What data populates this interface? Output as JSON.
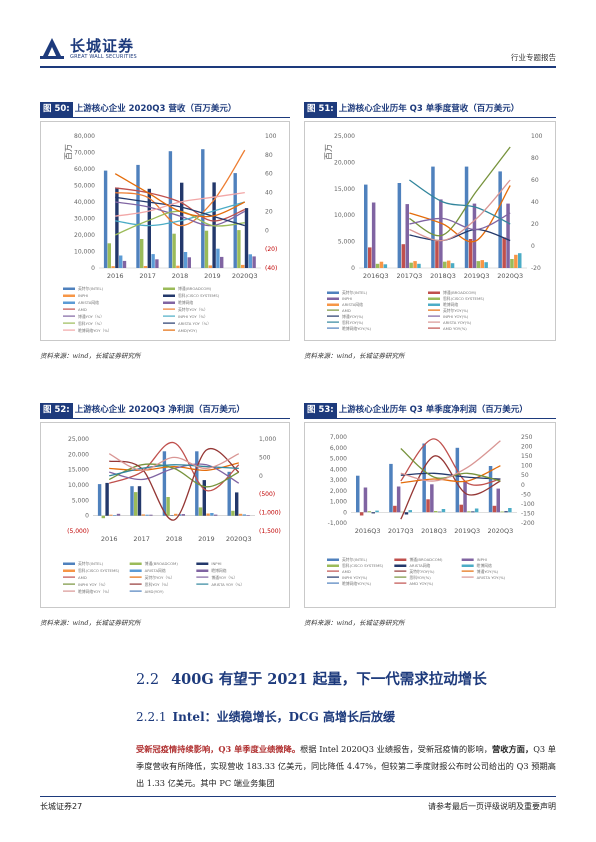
{
  "header": {
    "logo_cn": "长城证券",
    "logo_en": "GREAT WALL SECURITIES",
    "report_type": "行业专题报告"
  },
  "figures": [
    {
      "tag": "图 50:",
      "title": "上游核心企业 2020Q3 营收（百万美元）",
      "source": "资料来源：wind，长城证券研究所",
      "chart_data": {
        "type": "bar",
        "categories": [
          "2016",
          "2017",
          "2018",
          "2019",
          "2020Q3"
        ],
        "ylabel": "百万",
        "ylim": [
          0,
          80000
        ],
        "yticks": [
          "80,000",
          "70,000",
          "60,000",
          "50,000",
          "40,000",
          "30,000",
          "20,000",
          "10,000",
          "0"
        ],
        "y2lim": [
          -40,
          100
        ],
        "y2ticks": [
          "100",
          "80",
          "60",
          "40",
          "20",
          "0",
          "(20)",
          "(40)"
        ],
        "bar_colors": [
          "#4f81bd",
          "#9bbb59",
          "#f79646",
          "#23386b",
          "#5b9bd5",
          "#8064a2"
        ],
        "bar_series": [
          [
            59000,
            62500,
            70800,
            72000,
            57500
          ],
          [
            15000,
            17600,
            20800,
            22600,
            23000
          ],
          [
            1100,
            1200,
            1400,
            1600,
            1900
          ],
          [
            48800,
            48000,
            51700,
            51900,
            36300
          ],
          [
            7600,
            8400,
            9700,
            11700,
            8300
          ],
          [
            4300,
            5300,
            6500,
            6700,
            7000
          ]
        ],
        "line_series": [
          {
            "color": "#c0504d",
            "values": [
              45,
              40,
              30,
              10,
              22
            ]
          },
          {
            "color": "#ed7d31",
            "values": [
              40,
              35,
              5,
              30,
              85
            ]
          },
          {
            "color": "#8064a2",
            "values": [
              30,
              25,
              15,
              5,
              20
            ]
          },
          {
            "color": "#4bacc6",
            "values": [
              10,
              5,
              10,
              20,
              30
            ]
          },
          {
            "color": "#9bbb59",
            "values": [
              -5,
              10,
              20,
              5,
              8
            ]
          },
          {
            "color": "#23386b",
            "values": [
              35,
              30,
              25,
              15,
              5
            ]
          },
          {
            "color": "#f2a7a7",
            "values": [
              15,
              20,
              30,
              35,
              40
            ]
          },
          {
            "color": "#e46c0a",
            "values": [
              60,
              40,
              20,
              15,
              30
            ]
          }
        ],
        "legend": [
          "英特尔(INTEL)",
          "博通(BROADCOM)",
          "INPHI",
          "思科(CISCO SYSTEMS)",
          "ARISTA网络",
          "瞻博网络",
          "AMD",
          "英特尔YOY（%）",
          "博通YOY（%）",
          "INPHI YOY（%）",
          "思科YOY（%）",
          "ARISTA YOY（%）",
          "瞻博网络YOY（%）",
          "AMD(YOY)"
        ]
      }
    },
    {
      "tag": "图 51:",
      "title": "上游核心企业历年 Q3 单季度营收（百万美元）",
      "source": "资料来源：wind，长城证券研究所",
      "chart_data": {
        "type": "bar",
        "categories": [
          "2016Q3",
          "2017Q3",
          "2018Q3",
          "2019Q3",
          "2020Q3"
        ],
        "ylabel": "百万",
        "ylim": [
          0,
          25000
        ],
        "yticks": [
          "25,000",
          "20,000",
          "15,000",
          "10,000",
          "5,000",
          "0"
        ],
        "y2lim": [
          -20,
          100
        ],
        "y2ticks": [
          "100",
          "80",
          "60",
          "40",
          "20",
          "0",
          "-20"
        ],
        "bar_colors": [
          "#4f81bd",
          "#c0504d",
          "#8064a2",
          "#9bbb59",
          "#f79646",
          "#4bacc6"
        ],
        "bar_series": [
          [
            15800,
            16100,
            19200,
            19200,
            18300
          ],
          [
            3900,
            4500,
            5100,
            5500,
            5800
          ],
          [
            12400,
            12100,
            13000,
            12200,
            12200
          ],
          [
            800,
            1000,
            1200,
            1300,
            1700
          ],
          [
            1200,
            1300,
            1400,
            1500,
            2500
          ],
          [
            700,
            800,
            900,
            1100,
            2800
          ]
        ],
        "line_series": [
          {
            "color": "#77933c",
            "values": [
              null,
              25,
              10,
              50,
              90
            ]
          },
          {
            "color": "#e46c0a",
            "values": [
              null,
              30,
              20,
              5,
              55
            ]
          },
          {
            "color": "#23386b",
            "values": [
              null,
              10,
              5,
              15,
              5
            ]
          },
          {
            "color": "#8064a2",
            "values": [
              null,
              20,
              25,
              15,
              30
            ]
          },
          {
            "color": "#31859c",
            "values": [
              null,
              60,
              40,
              35,
              20
            ]
          },
          {
            "color": "#d99694",
            "values": [
              null,
              15,
              5,
              25,
              60
            ]
          }
        ],
        "legend": [
          "英特尔(INTEL)",
          "博通(BROADCOM)",
          "INPHI",
          "思科(CISCO SYSTEMS)",
          "ARISTA网络",
          "瞻博网络",
          "AMD",
          "英特尔YOY(%)",
          "博通YOY(%)",
          "INPHI YOY(%)",
          "思科YOY(%)",
          "ARISTA YOY(%)",
          "瞻博网络YOY(%)",
          "AMD YOY(%)"
        ]
      }
    },
    {
      "tag": "图 52:",
      "title": "上游核心企业 2020Q3 净利润（百万美元）",
      "source": "资料来源：wind，长城证券研究所",
      "chart_data": {
        "type": "bar",
        "categories": [
          "2016",
          "2017",
          "2018",
          "2019",
          "2020Q3"
        ],
        "ylim": [
          -5000,
          25000
        ],
        "yticks": [
          "25,000",
          "20,000",
          "15,000",
          "10,000",
          "5,000",
          "0",
          "(5,000)"
        ],
        "y2lim": [
          -1500,
          1000
        ],
        "y2ticks": [
          "1,000",
          "500",
          "0",
          "(500)",
          "(1,000)",
          "(1,500)"
        ],
        "bar_colors": [
          "#4f81bd",
          "#9bbb59",
          "#23386b",
          "#f79646",
          "#5b9bd5",
          "#8064a2"
        ],
        "bar_series": [
          [
            10300,
            9600,
            21000,
            21000,
            14300
          ],
          [
            -800,
            7700,
            6100,
            2700,
            1600
          ],
          [
            10700,
            9600,
            100,
            11600,
            7600
          ],
          [
            300,
            400,
            600,
            700,
            600
          ],
          [
            200,
            300,
            450,
            860,
            400
          ],
          [
            600,
            300,
            500,
            350,
            200
          ]
        ],
        "line_series": [
          {
            "color": "#c0504d",
            "values": [
              -200,
              100,
              900,
              -400,
              300
            ]
          },
          {
            "color": "#e46c0a",
            "values": [
              200,
              150,
              250,
              150,
              350
            ]
          },
          {
            "color": "#8064a2",
            "values": [
              100,
              -100,
              200,
              300,
              -200
            ]
          },
          {
            "color": "#77933c",
            "values": [
              -100,
              300,
              200,
              -300,
              100
            ]
          },
          {
            "color": "#953735",
            "values": [
              400,
              200,
              -1200,
              700,
              100
            ]
          },
          {
            "color": "#31859c",
            "values": [
              0,
              200,
              300,
              250,
              200
            ]
          },
          {
            "color": "#d99694",
            "values": [
              600,
              150,
              500,
              200,
              600
            ]
          }
        ],
        "legend": [
          "英特尔(INTEL)",
          "博通(BROADCOM)",
          "INPHI",
          "思科(CISCO SYSTEMS)",
          "ARISTA网络",
          "瞻博网络",
          "AMD",
          "英特尔YOY（%）",
          "博通YOY（%）",
          "INPHI YOY（%）",
          "思科YOY（%）",
          "ARISTA YOY（%）",
          "瞻博网络YOY（%）",
          "AMD(YOY)"
        ]
      }
    },
    {
      "tag": "图 53:",
      "title": "上游核心企业历年 Q3 单季度净利润（百万美元）",
      "source": "资料来源：wind，长城证券研究所",
      "chart_data": {
        "type": "bar",
        "categories": [
          "2016Q3",
          "2017Q3",
          "2018Q3",
          "2019Q3",
          "2020Q3"
        ],
        "ylim": [
          -1000,
          7000
        ],
        "yticks": [
          "7,000",
          "6,000",
          "5,000",
          "4,000",
          "3,000",
          "2,000",
          "1,000",
          "0",
          "-1,000"
        ],
        "y2lim": [
          -200,
          250
        ],
        "y2ticks": [
          "250",
          "200",
          "150",
          "100",
          "50",
          "0",
          "-50",
          "-100",
          "-150",
          "-200"
        ],
        "bar_colors": [
          "#4f81bd",
          "#c0504d",
          "#8064a2",
          "#9bbb59",
          "#23386b",
          "#4bacc6"
        ],
        "bar_series": [
          [
            3400,
            4500,
            6400,
            6000,
            4300
          ],
          [
            -300,
            600,
            1200,
            700,
            600
          ],
          [
            2300,
            2400,
            2600,
            2900,
            2200
          ],
          [
            100,
            50,
            120,
            90,
            70
          ],
          [
            -100,
            -200,
            50,
            80,
            100
          ],
          [
            150,
            200,
            300,
            350,
            400
          ]
        ],
        "line_series": [
          {
            "color": "#c0504d",
            "values": [
              null,
              20,
              240,
              10,
              30
            ]
          },
          {
            "color": "#953735",
            "values": [
              null,
              -180,
              150,
              -50,
              20
            ]
          },
          {
            "color": "#e46c0a",
            "values": [
              null,
              10,
              30,
              20,
              100
            ]
          },
          {
            "color": "#23386b",
            "values": [
              null,
              50,
              60,
              40,
              30
            ]
          },
          {
            "color": "#77933c",
            "values": [
              null,
              190,
              40,
              60,
              20
            ]
          },
          {
            "color": "#d99694",
            "values": [
              null,
              60,
              20,
              90,
              230
            ]
          }
        ],
        "legend": [
          "英特尔(INTEL)",
          "博通(BROADCOM)",
          "INPHI",
          "思科(CISCO SYSTEMS)",
          "ARISTA网络",
          "瞻博网络",
          "AMD",
          "英特尔YOY(%)",
          "博通YOY(%)",
          "INPHI YOY(%)",
          "思科YOY(%)",
          "ARISTA YOY(%)",
          "瞻博网络YOY(%)",
          "AMD YOY(%)"
        ]
      }
    }
  ],
  "section": {
    "number": "2.2",
    "title": "400G 有望于 2021 起量，下一代需求拉动增长"
  },
  "subsection": {
    "number": "2.2.1",
    "title": "Intel：业绩稳增长，DCG 高增长后放缓"
  },
  "body": {
    "lead": "受新冠疫情持续影响，Q3 单季度业绩微降。",
    "text1": "根据 Intel 2020Q3 业绩报告，受新冠疫情的影响，",
    "bold1": "营收方面，",
    "text2": "Q3 单季度营收有所降低，实现营收 183.33 亿美元，同比降低 4.47%，但较第二季度财报公布时公司给出的 Q3 预期高出 1.33 亿美元。其中 PC 端业务集团"
  },
  "footer": {
    "left": "长城证券27",
    "right": "请参考最后一页评级说明及重要声明"
  }
}
